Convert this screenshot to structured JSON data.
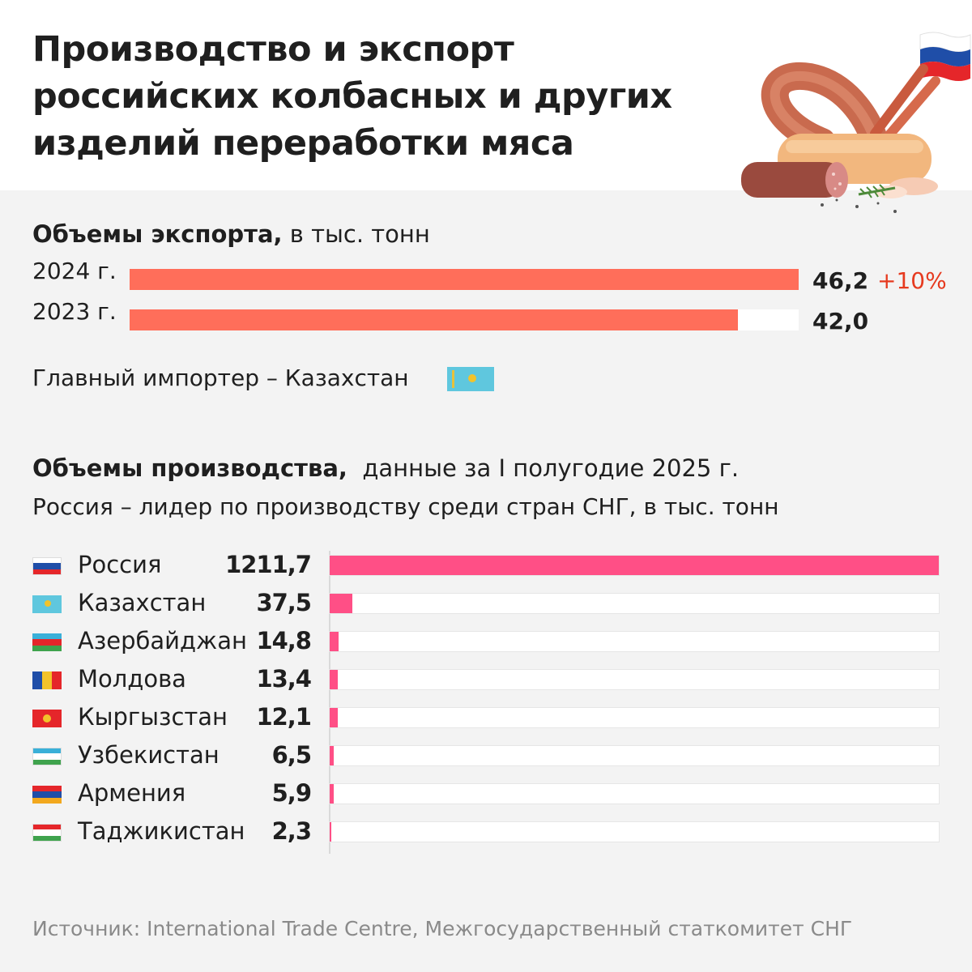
{
  "title": "Производство и экспорт российских колбасных и других изделий переработки мяса",
  "colors": {
    "export_bar": "#ff6e5a",
    "production_bar": "#ff4f86",
    "change": "#e63a1f"
  },
  "export": {
    "heading_bold": "Объемы экспорта,",
    "heading_rest": "в тыс. тонн",
    "change": "+10%",
    "main_importer": "Главный импортер – Казахстан"
  },
  "production": {
    "heading_bold": "Объемы производства,",
    "heading_rest": "данные за I полугодие 2025 г.",
    "subtitle": "Россия – лидер по производству среди стран СНГ, в тыс. тонн"
  },
  "source": "Источник: International Trade Centre, Межгосударственный статкомитет СНГ",
  "chart_data": [
    {
      "type": "bar",
      "orientation": "horizontal",
      "categories": [
        "2024 г.",
        "2023 г."
      ],
      "values": [
        46.2,
        42.0
      ],
      "value_labels": [
        "46,2",
        "42,0"
      ],
      "xlim": [
        0,
        46.2
      ]
    },
    {
      "type": "bar",
      "orientation": "horizontal",
      "categories": [
        "Россия",
        "Казахстан",
        "Азербайджан",
        "Молдова",
        "Кыргызстан",
        "Узбекистан",
        "Армения",
        "Таджикистан"
      ],
      "values": [
        1211.7,
        37.5,
        14.8,
        13.4,
        12.1,
        6.5,
        5.9,
        2.3
      ],
      "value_labels": [
        "1211,7",
        "37,5",
        "14,8",
        "13,4",
        "12,1",
        "6,5",
        "5,9",
        "2,3"
      ],
      "flag_icons": [
        "russia-flag-icon",
        "kazakhstan-flag-icon",
        "azerbaijan-flag-icon",
        "moldova-flag-icon",
        "kyrgyzstan-flag-icon",
        "uzbekistan-flag-icon",
        "armenia-flag-icon",
        "tajikistan-flag-icon"
      ],
      "xlim": [
        0,
        1211.7
      ]
    }
  ]
}
